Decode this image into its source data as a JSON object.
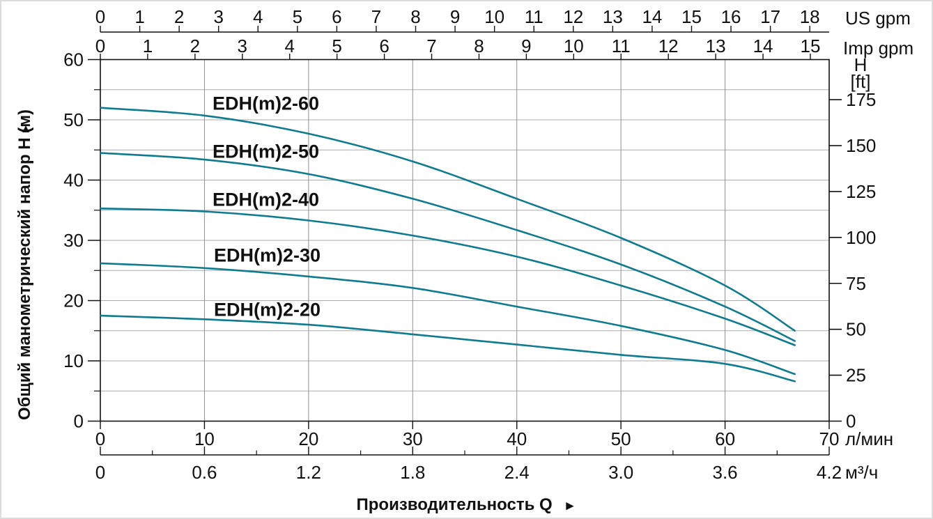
{
  "chart": {
    "y_axis_title": "Общий манометрический напор H (м)",
    "y_axis_arrow": "▲",
    "x_axis_title": "Производительность Q",
    "x_axis_arrow": "►",
    "units": {
      "us_gpm": "US gpm",
      "imp_gpm": "Imp gpm",
      "ft_line1": "H",
      "ft_line2": "[ft]",
      "l_min": "л/мин",
      "m3_h": "м³/ч"
    }
  },
  "chart_data": {
    "type": "line",
    "title": "",
    "x_axis": {
      "unit_primary": "л/мин",
      "unit_secondary": "м³/ч",
      "range_lmin": [
        0,
        70
      ]
    },
    "y_axis": {
      "title": "Общий манометрический напор H (м)",
      "unit": "м",
      "range_m": [
        0,
        60
      ]
    },
    "grid": {
      "h_step_m": 5,
      "v_step_lmin": 10
    },
    "axes": {
      "top_us_gpm": {
        "unit": "US gpm",
        "lmin_per_unit": 3.78541,
        "ticks": [
          0,
          1,
          2,
          3,
          4,
          5,
          6,
          7,
          8,
          9,
          10,
          11,
          12,
          13,
          14,
          15,
          16,
          17,
          18
        ]
      },
      "top_imp_gpm": {
        "unit": "Imp gpm",
        "lmin_per_unit": 4.54609,
        "ticks": [
          0,
          1,
          2,
          3,
          4,
          5,
          6,
          7,
          8,
          9,
          10,
          11,
          12,
          13,
          14,
          15
        ]
      },
      "left_m": {
        "ticks": [
          0,
          10,
          20,
          30,
          40,
          50,
          60
        ],
        "minor_ticks": [
          5,
          15,
          25,
          35,
          45,
          55
        ]
      },
      "right_ft": {
        "unit_line1": "H",
        "unit_line2": "[ft]",
        "m_per_unit": 0.3048,
        "ticks": [
          0,
          25,
          50,
          75,
          100,
          125,
          150,
          175
        ]
      },
      "bottom_lmin": {
        "unit": "л/мин",
        "ticks": [
          0,
          10,
          20,
          30,
          40,
          50,
          60,
          70
        ]
      },
      "bottom_m3h": {
        "unit": "м³/ч",
        "lmin_per_unit": 16.6667,
        "tick_labels": [
          "0",
          "0.6",
          "1.2",
          "1.8",
          "2.4",
          "3.0",
          "3.6",
          "4.2"
        ],
        "tick_values": [
          0,
          0.6,
          1.2,
          1.8,
          2.4,
          3.0,
          3.6,
          4.2
        ],
        "minor_tick_values": [
          0.3,
          0.9,
          1.5,
          2.1,
          2.7,
          3.3,
          3.9
        ]
      }
    },
    "series": [
      {
        "name": "EDH(m)2-60",
        "points_q_lmin_h_m": [
          [
            0,
            52.0
          ],
          [
            10,
            50.7
          ],
          [
            20,
            47.7
          ],
          [
            30,
            43.1
          ],
          [
            40,
            36.9
          ],
          [
            50,
            30.4
          ],
          [
            60,
            22.5
          ],
          [
            66.7,
            15.0
          ]
        ]
      },
      {
        "name": "EDH(m)2-50",
        "points_q_lmin_h_m": [
          [
            0,
            44.5
          ],
          [
            10,
            43.4
          ],
          [
            20,
            41.0
          ],
          [
            30,
            36.9
          ],
          [
            40,
            31.7
          ],
          [
            50,
            26.0
          ],
          [
            60,
            19.0
          ],
          [
            66.7,
            13.3
          ]
        ]
      },
      {
        "name": "EDH(m)2-40",
        "points_q_lmin_h_m": [
          [
            0,
            35.3
          ],
          [
            10,
            34.8
          ],
          [
            20,
            33.3
          ],
          [
            30,
            30.8
          ],
          [
            40,
            27.3
          ],
          [
            50,
            22.5
          ],
          [
            60,
            17.0
          ],
          [
            66.7,
            12.6
          ]
        ]
      },
      {
        "name": "EDH(m)2-30",
        "points_q_lmin_h_m": [
          [
            0,
            26.2
          ],
          [
            10,
            25.4
          ],
          [
            20,
            24.0
          ],
          [
            30,
            22.1
          ],
          [
            40,
            19.0
          ],
          [
            50,
            15.8
          ],
          [
            60,
            11.8
          ],
          [
            66.7,
            7.8
          ]
        ]
      },
      {
        "name": "EDH(m)2-20",
        "points_q_lmin_h_m": [
          [
            0,
            17.5
          ],
          [
            10,
            16.9
          ],
          [
            20,
            16.0
          ],
          [
            30,
            14.4
          ],
          [
            40,
            12.7
          ],
          [
            50,
            11.0
          ],
          [
            60,
            9.5
          ],
          [
            66.7,
            6.6
          ]
        ]
      }
    ],
    "style": {
      "curve_color": "#0f7b8e",
      "h_grid_color": "#ababab",
      "v_grid_color": "#8f8f8f",
      "axis_color": "#111111"
    },
    "legend_position": "labels-on-chart"
  }
}
